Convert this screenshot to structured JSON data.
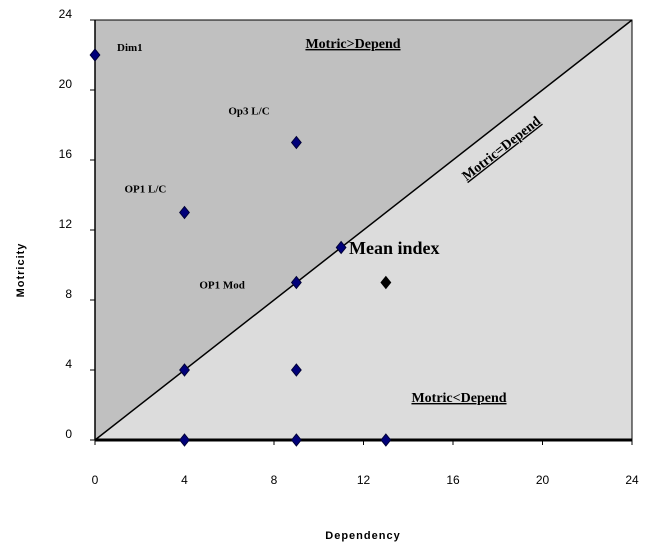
{
  "chart_data": {
    "type": "scatter",
    "title": "",
    "xlabel": "Dependency",
    "ylabel": "Motricity",
    "xlim": [
      0,
      24
    ],
    "ylim": [
      0,
      24
    ],
    "x_ticks": [
      "0",
      "4",
      "8",
      "12",
      "16",
      "20",
      "24"
    ],
    "y_ticks": [
      "0",
      "4",
      "8",
      "12",
      "16",
      "20",
      "24"
    ],
    "grid": false,
    "diagonal_label": "Motric=Depend",
    "regions": {
      "upper": "Motric>Depend",
      "lower": "Motric<Depend"
    },
    "colors": {
      "upper_region": "#c0c0c0",
      "lower_region": "#dcdcdc",
      "marker": "#00007a",
      "marker_edge": "#000033",
      "mean_marker": "#000000"
    },
    "points": [
      {
        "x": 0,
        "y": 22,
        "label": "Dim1"
      },
      {
        "x": 9,
        "y": 17,
        "label": "Op3 L/C"
      },
      {
        "x": 4,
        "y": 13,
        "label": "OP1 L/C"
      },
      {
        "x": 9,
        "y": 9,
        "label": "OP1 Mod"
      },
      {
        "x": 11,
        "y": 11,
        "label": ""
      },
      {
        "x": 4,
        "y": 4,
        "label": ""
      },
      {
        "x": 9,
        "y": 4,
        "label": ""
      },
      {
        "x": 4,
        "y": 0,
        "label": ""
      },
      {
        "x": 9,
        "y": 0,
        "label": ""
      },
      {
        "x": 13,
        "y": 0,
        "label": ""
      }
    ],
    "mean_point": {
      "x": 13,
      "y": 9,
      "label": "Mean index"
    }
  }
}
